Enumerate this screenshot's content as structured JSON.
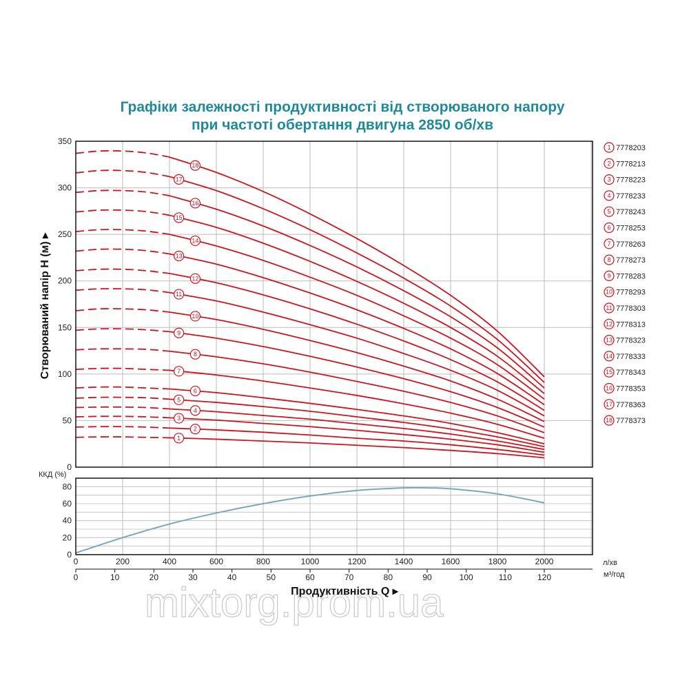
{
  "title": {
    "line1": "Графіки залежності продуктивності від створюваного напору",
    "line2": "при частоті обертання двигуна 2850 об/хв"
  },
  "watermark": "mixtorg.prom.ua",
  "colors": {
    "curves": "#d0121b",
    "efficiency": "#7aa6c0",
    "title": "#1f8a9a",
    "grid": "#bbbbbb"
  },
  "chart_data": [
    {
      "type": "line",
      "ylabel": "Створюваний напір H (м) ▸",
      "ylim": [
        0,
        350
      ],
      "yticks": [
        "0",
        "50",
        "100",
        "150",
        "200",
        "250",
        "300",
        "350"
      ],
      "xlim": [
        -0.0,
        2200
      ],
      "dashed_until_x": 400,
      "x": [
        0,
        100,
        200,
        300,
        400,
        600,
        800,
        1000,
        1200,
        1400,
        1600,
        1800,
        2000
      ],
      "series": [
        {
          "name": "1",
          "model": "7778203",
          "values": [
            32,
            32.5,
            32.5,
            32,
            31.5,
            30,
            28,
            26,
            23.5,
            21,
            18,
            14.5,
            10
          ]
        },
        {
          "name": "2",
          "model": "7778213",
          "values": [
            43,
            43.5,
            43.5,
            43,
            42,
            40,
            37.5,
            34.5,
            31,
            28,
            24,
            19,
            13
          ]
        },
        {
          "name": "3",
          "model": "7778223",
          "values": [
            54,
            54.5,
            54.5,
            54,
            53,
            50.5,
            47,
            43.5,
            39.5,
            35,
            30,
            24,
            16
          ]
        },
        {
          "name": "4",
          "model": "7778233",
          "values": [
            64,
            64.5,
            64.5,
            64,
            62.5,
            59.5,
            55.5,
            51.5,
            46.5,
            41.5,
            35.5,
            28,
            19
          ]
        },
        {
          "name": "5",
          "model": "7778243",
          "values": [
            74,
            75,
            75,
            74.5,
            73,
            69.5,
            65,
            60,
            54,
            48,
            41,
            32.5,
            22
          ]
        },
        {
          "name": "6",
          "model": "7778253",
          "values": [
            85,
            86,
            86,
            85,
            84,
            80,
            74.5,
            68.5,
            62,
            55,
            47,
            37,
            25
          ]
        },
        {
          "name": "7",
          "model": "7778263",
          "values": [
            105,
            106,
            106,
            105,
            104,
            99,
            92.5,
            85,
            77,
            68,
            58,
            46,
            31
          ]
        },
        {
          "name": "8",
          "model": "7778273",
          "values": [
            126,
            127,
            127,
            126.5,
            124.5,
            118.5,
            111,
            102,
            92,
            81.5,
            69.5,
            55,
            37
          ]
        },
        {
          "name": "9",
          "model": "7778283",
          "values": [
            147,
            148.5,
            148.5,
            147.5,
            145.5,
            138.5,
            129.5,
            119,
            107.5,
            95,
            81,
            64,
            43
          ]
        },
        {
          "name": "10",
          "model": "7778293",
          "values": [
            168,
            170,
            170,
            169,
            166.5,
            158.5,
            148,
            136,
            123,
            108.5,
            92.5,
            73,
            49
          ]
        },
        {
          "name": "11",
          "model": "7778303",
          "values": [
            190,
            191.5,
            191.5,
            190.5,
            187.5,
            178.5,
            166.5,
            153,
            138.5,
            122,
            104,
            82.5,
            55
          ]
        },
        {
          "name": "12",
          "model": "7778313",
          "values": [
            211,
            212.5,
            212.5,
            211,
            208,
            198,
            185,
            170,
            153.5,
            135.5,
            115.5,
            91.5,
            61
          ]
        },
        {
          "name": "13",
          "model": "7778323",
          "values": [
            232,
            234,
            234,
            232.5,
            229,
            218,
            203.5,
            187,
            169,
            149,
            127,
            100.5,
            67
          ]
        },
        {
          "name": "14",
          "model": "7778333",
          "values": [
            253,
            255,
            255,
            253.5,
            250,
            237.5,
            222,
            204,
            184.5,
            162.5,
            138.5,
            110,
            73
          ]
        },
        {
          "name": "15",
          "model": "7778343",
          "values": [
            274,
            276,
            276,
            274.5,
            270.5,
            257.5,
            240.5,
            221,
            199.5,
            176,
            150,
            119,
            79
          ]
        },
        {
          "name": "16",
          "model": "7778353",
          "values": [
            295,
            297,
            297,
            295.5,
            291.5,
            277,
            259,
            238,
            215,
            189.5,
            161.5,
            128,
            85
          ]
        },
        {
          "name": "17",
          "model": "7778363",
          "values": [
            316,
            318.5,
            318.5,
            316.5,
            312,
            297,
            277.5,
            255,
            230,
            203,
            173,
            137,
            91
          ]
        },
        {
          "name": "18",
          "model": "7778373",
          "values": [
            337,
            339.5,
            339.5,
            337.5,
            333,
            316.5,
            296,
            272,
            245.5,
            216.5,
            184.5,
            146,
            97
          ]
        }
      ]
    },
    {
      "type": "line",
      "ylabel": "ККД (%)",
      "ylim": [
        0,
        90
      ],
      "yticks": [
        "0",
        "20",
        "40",
        "60",
        "80"
      ],
      "x": [
        0,
        200,
        400,
        600,
        800,
        1000,
        1200,
        1400,
        1500,
        1600,
        1800,
        2000
      ],
      "series": [
        {
          "values": [
            2,
            20,
            36,
            49,
            60,
            69,
            75.5,
            78.5,
            78.5,
            77.5,
            71.5,
            61
          ]
        }
      ]
    }
  ],
  "axes": {
    "x_lpm_ticks": [
      "0",
      "200",
      "400",
      "600",
      "800",
      "1000",
      "1200",
      "1400",
      "1600",
      "1800",
      "2000"
    ],
    "x_lpm_unit": "л/хв",
    "x_m3h_ticks": [
      "0",
      "10",
      "20",
      "30",
      "40",
      "50",
      "60",
      "70",
      "80",
      "90",
      "100",
      "110",
      "120"
    ],
    "x_m3h_unit": "м³/год",
    "xlabel": "Продуктивність Q ▸"
  },
  "legend": [
    {
      "num": "1",
      "model": "7778203"
    },
    {
      "num": "2",
      "model": "7778213"
    },
    {
      "num": "3",
      "model": "7778223"
    },
    {
      "num": "4",
      "model": "7778233"
    },
    {
      "num": "5",
      "model": "7778243"
    },
    {
      "num": "6",
      "model": "7778253"
    },
    {
      "num": "7",
      "model": "7778263"
    },
    {
      "num": "8",
      "model": "7778273"
    },
    {
      "num": "9",
      "model": "7778283"
    },
    {
      "num": "10",
      "model": "7778293"
    },
    {
      "num": "11",
      "model": "7778303"
    },
    {
      "num": "12",
      "model": "7778313"
    },
    {
      "num": "13",
      "model": "7778323"
    },
    {
      "num": "14",
      "model": "7778333"
    },
    {
      "num": "15",
      "model": "7778343"
    },
    {
      "num": "16",
      "model": "7778353"
    },
    {
      "num": "17",
      "model": "7778363"
    },
    {
      "num": "18",
      "model": "7778373"
    }
  ]
}
